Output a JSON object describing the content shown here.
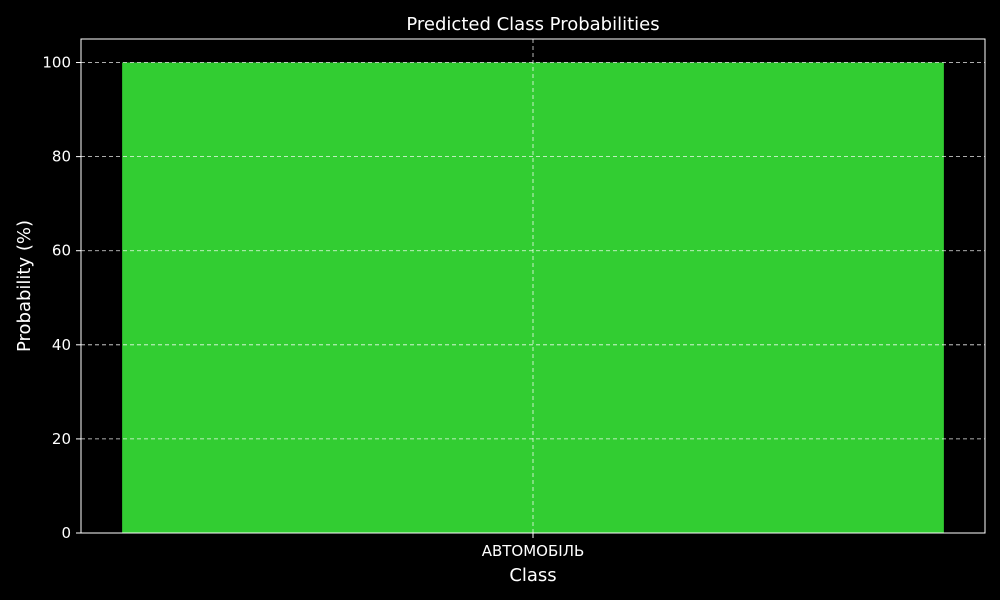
{
  "chart_data": {
    "type": "bar",
    "title": "Predicted Class Probabilities",
    "xlabel": "Class",
    "ylabel": "Probability (%)",
    "categories": [
      "АВТОМОБІЛЬ"
    ],
    "values": [
      100
    ],
    "ylim": [
      0,
      105
    ],
    "yticks": [
      0,
      20,
      40,
      60,
      80,
      100
    ],
    "grid": true,
    "colors": {
      "background": "#000000",
      "bar": "#32cd32",
      "text": "#ffffff",
      "grid": "#ffffff"
    }
  }
}
